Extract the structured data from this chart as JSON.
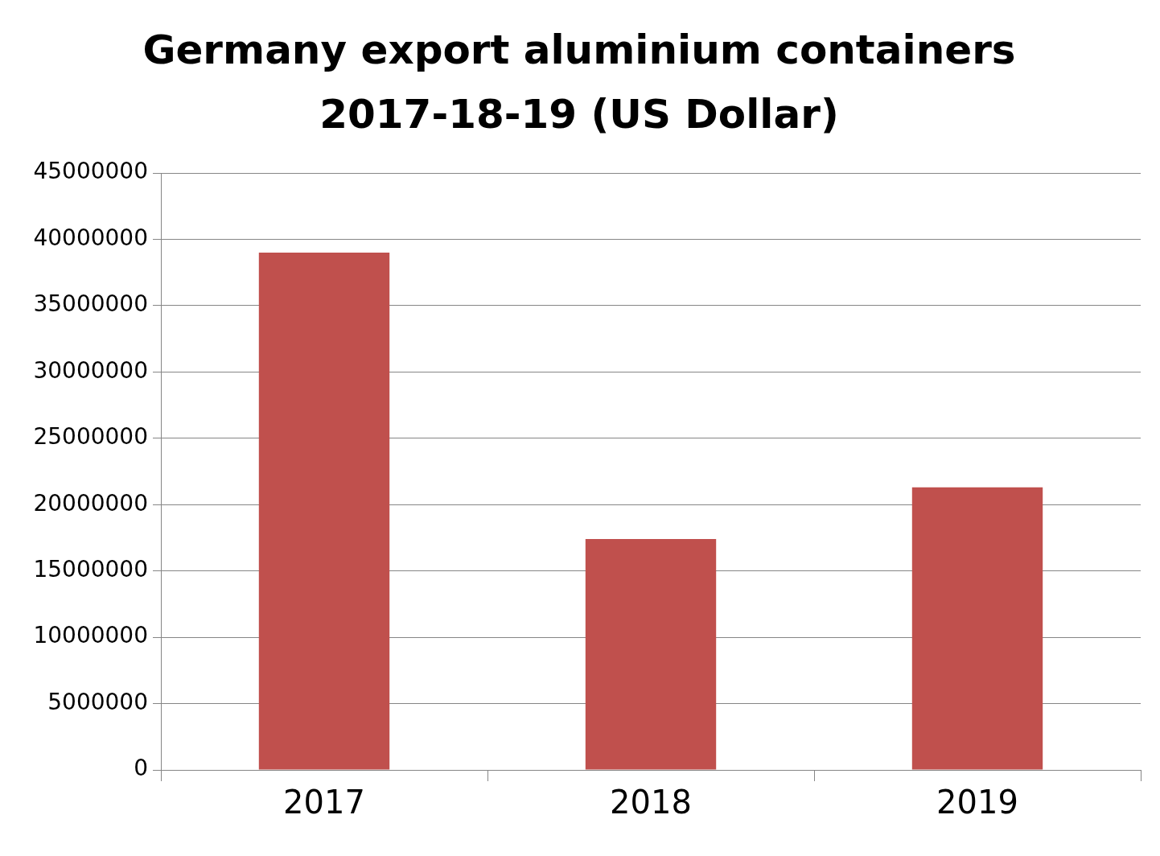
{
  "chart_data": {
    "type": "bar",
    "title": "Germany export aluminium containers 2017-18-19 (US Dollar)",
    "categories": [
      "2017",
      "2018",
      "2019"
    ],
    "values": [
      39000000,
      17400000,
      21300000
    ],
    "color": "#c0504d",
    "ylim": [
      0,
      45000000
    ],
    "yticks": [
      0,
      5000000,
      10000000,
      15000000,
      20000000,
      25000000,
      30000000,
      35000000,
      40000000,
      45000000
    ],
    "grid": "y",
    "legend": false
  }
}
